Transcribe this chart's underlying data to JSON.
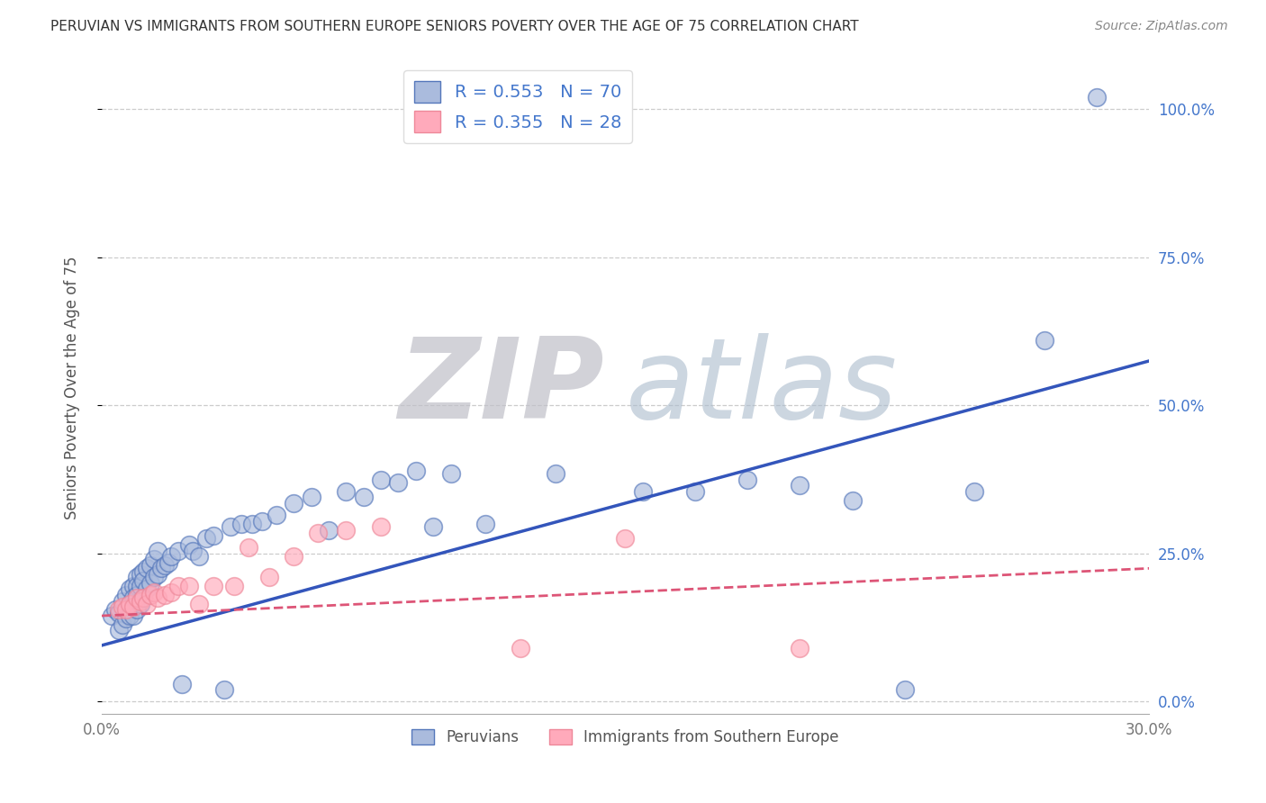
{
  "title": "PERUVIAN VS IMMIGRANTS FROM SOUTHERN EUROPE SENIORS POVERTY OVER THE AGE OF 75 CORRELATION CHART",
  "source": "Source: ZipAtlas.com",
  "ylabel": "Seniors Poverty Over the Age of 75",
  "xlim": [
    0.0,
    0.3
  ],
  "ylim": [
    -0.02,
    1.08
  ],
  "y_ticks": [
    0.0,
    0.25,
    0.5,
    0.75,
    1.0
  ],
  "y_tick_labels_right": [
    "0.0%",
    "25.0%",
    "50.0%",
    "75.0%",
    "100.0%"
  ],
  "x_ticks": [
    0.0,
    0.05,
    0.1,
    0.15,
    0.2,
    0.25,
    0.3
  ],
  "x_tick_labels": [
    "0.0%",
    "",
    "",
    "",
    "",
    "",
    "30.0%"
  ],
  "series1_fill_color": "#aabbdd",
  "series2_fill_color": "#ffaabb",
  "series1_edge_color": "#5577bb",
  "series2_edge_color": "#ee8899",
  "series1_label": "Peruvians",
  "series2_label": "Immigrants from Southern Europe",
  "series1_R": "0.553",
  "series1_N": "70",
  "series2_R": "0.355",
  "series2_N": "28",
  "line1_color": "#3355bb",
  "line2_color": "#dd5577",
  "watermark_zip_color": "#c8c8cc",
  "watermark_atlas_color": "#aabbcc",
  "background_color": "#ffffff",
  "grid_color": "#cccccc",
  "legend_text_color": "#4477cc",
  "right_axis_color": "#4477cc",
  "series1_x": [
    0.003,
    0.004,
    0.005,
    0.005,
    0.006,
    0.006,
    0.007,
    0.007,
    0.008,
    0.008,
    0.008,
    0.009,
    0.009,
    0.009,
    0.01,
    0.01,
    0.01,
    0.01,
    0.011,
    0.011,
    0.011,
    0.012,
    0.012,
    0.012,
    0.013,
    0.013,
    0.014,
    0.014,
    0.015,
    0.015,
    0.016,
    0.016,
    0.017,
    0.018,
    0.019,
    0.02,
    0.022,
    0.023,
    0.025,
    0.026,
    0.028,
    0.03,
    0.032,
    0.035,
    0.037,
    0.04,
    0.043,
    0.046,
    0.05,
    0.055,
    0.06,
    0.065,
    0.07,
    0.075,
    0.08,
    0.085,
    0.09,
    0.095,
    0.1,
    0.11,
    0.13,
    0.155,
    0.17,
    0.185,
    0.2,
    0.215,
    0.23,
    0.25,
    0.27,
    0.285
  ],
  "series1_y": [
    0.145,
    0.155,
    0.15,
    0.12,
    0.17,
    0.13,
    0.18,
    0.14,
    0.19,
    0.165,
    0.145,
    0.195,
    0.175,
    0.145,
    0.21,
    0.195,
    0.18,
    0.155,
    0.215,
    0.195,
    0.165,
    0.22,
    0.205,
    0.175,
    0.225,
    0.19,
    0.23,
    0.2,
    0.24,
    0.21,
    0.255,
    0.215,
    0.225,
    0.23,
    0.235,
    0.245,
    0.255,
    0.03,
    0.265,
    0.255,
    0.245,
    0.275,
    0.28,
    0.02,
    0.295,
    0.3,
    0.3,
    0.305,
    0.315,
    0.335,
    0.345,
    0.29,
    0.355,
    0.345,
    0.375,
    0.37,
    0.39,
    0.295,
    0.385,
    0.3,
    0.385,
    0.355,
    0.355,
    0.375,
    0.365,
    0.34,
    0.02,
    0.355,
    0.61,
    1.02
  ],
  "series2_x": [
    0.005,
    0.006,
    0.007,
    0.008,
    0.009,
    0.01,
    0.011,
    0.012,
    0.013,
    0.014,
    0.015,
    0.016,
    0.018,
    0.02,
    0.022,
    0.025,
    0.028,
    0.032,
    0.038,
    0.042,
    0.048,
    0.055,
    0.062,
    0.07,
    0.08,
    0.12,
    0.15,
    0.2
  ],
  "series2_y": [
    0.155,
    0.16,
    0.155,
    0.165,
    0.16,
    0.175,
    0.17,
    0.175,
    0.165,
    0.18,
    0.185,
    0.175,
    0.18,
    0.185,
    0.195,
    0.195,
    0.165,
    0.195,
    0.195,
    0.26,
    0.21,
    0.245,
    0.285,
    0.29,
    0.295,
    0.09,
    0.275,
    0.09
  ],
  "line1_x0": 0.0,
  "line1_y0": 0.095,
  "line1_x1": 0.3,
  "line1_y1": 0.575,
  "line2_x0": 0.0,
  "line2_y0": 0.145,
  "line2_x1": 0.3,
  "line2_y1": 0.225
}
